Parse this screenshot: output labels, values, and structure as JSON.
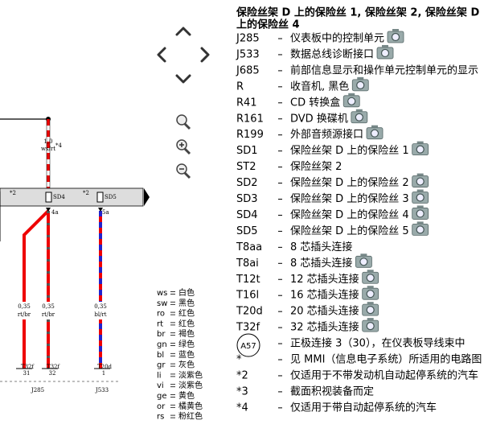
{
  "header": {
    "title": [
      "保险丝架 D 上的保险丝 1, 保险丝架 2, 保险丝架 D",
      "上的保险丝 4"
    ]
  },
  "components": [
    {
      "code": "J285",
      "desc": "仪表板中的控制单元",
      "photo": true
    },
    {
      "code": "J533",
      "desc": "数据总线诊断接口",
      "photo": true
    },
    {
      "code": "J685",
      "desc": "前部信息显示和操作单元控制单元的显示",
      "photo": false
    },
    {
      "code": "R",
      "desc": "收音机, 黑色",
      "photo": true
    },
    {
      "code": "R41",
      "desc": "CD 转换盒",
      "photo": true
    },
    {
      "code": "R161",
      "desc": "DVD 换碟机",
      "photo": true
    },
    {
      "code": "R199",
      "desc": "外部音频源接口",
      "photo": true
    },
    {
      "code": "SD1",
      "desc": "保险丝架 D 上的保险丝 1",
      "photo": true
    },
    {
      "code": "ST2",
      "desc": "保险丝架 2",
      "photo": false
    },
    {
      "code": "SD2",
      "desc": "保险丝架 D 上的保险丝 2",
      "photo": true
    },
    {
      "code": "SD3",
      "desc": "保险丝架 D 上的保险丝 3",
      "photo": true
    },
    {
      "code": "SD4",
      "desc": "保险丝架 D 上的保险丝 4",
      "photo": true
    },
    {
      "code": "SD5",
      "desc": "保险丝架 D 上的保险丝 5",
      "photo": true
    },
    {
      "code": "T8aa",
      "desc": "8 芯插头连接",
      "photo": false
    },
    {
      "code": "T8ai",
      "desc": "8 芯插头连接",
      "photo": true
    },
    {
      "code": "T12t",
      "desc": "12 芯插头连接",
      "photo": true
    },
    {
      "code": "T16l",
      "desc": "16 芯插头连接",
      "photo": true
    },
    {
      "code": "T20d",
      "desc": "20 芯插头连接",
      "photo": true
    },
    {
      "code": "T32f",
      "desc": "32 芯插头连接",
      "photo": true
    },
    {
      "code": "A57",
      "desc": "正极连接 3（30），在仪表板导线束中",
      "photo": false
    },
    {
      "code": "*",
      "desc": "见 MMI（信息电子系统）所适用的电路图",
      "photo": false
    },
    {
      "code": "*2",
      "desc": "仅适用于不带发动机自动起停系统的汽车",
      "photo": false
    },
    {
      "code": "*3",
      "desc": "截面积视装备而定",
      "photo": false
    },
    {
      "code": "*4",
      "desc": "仅适用于带自动起停系统的汽车",
      "photo": false
    }
  ],
  "color_legend": [
    {
      "code": "ws",
      "color": "白色"
    },
    {
      "code": "sw",
      "color": "黑色"
    },
    {
      "code": "ro",
      "color": "红色"
    },
    {
      "code": "rt",
      "color": "红色"
    },
    {
      "code": "br",
      "color": "褐色"
    },
    {
      "code": "gn",
      "color": "绿色"
    },
    {
      "code": "bl",
      "color": "蓝色"
    },
    {
      "code": "gr",
      "color": "灰色"
    },
    {
      "code": "li",
      "color": "淡紫色"
    },
    {
      "code": "vi",
      "color": "淡紫色"
    },
    {
      "code": "ge",
      "color": "黄色"
    },
    {
      "code": "or",
      "color": "橘黄色"
    },
    {
      "code": "rs",
      "color": "粉红色"
    }
  ],
  "diagram": {
    "wire_top": {
      "size": "1,0",
      "color": "ws/rt",
      "note": "*4"
    },
    "fuse_notes": [
      "*2",
      "*2"
    ],
    "fuses": [
      "SD4",
      "SD5"
    ],
    "pins": [
      "4a",
      "5a"
    ],
    "wires": [
      {
        "size": "0,35",
        "color": "rt/br"
      },
      {
        "size": "0,35",
        "color": "rt/br"
      },
      {
        "size": "0,35",
        "color": "bl/rt"
      }
    ],
    "connectors": [
      {
        "name": "T32f",
        "pin": "31"
      },
      {
        "name": "T32f",
        "pin": "32"
      },
      {
        "name": "T20d",
        "pin": "1"
      }
    ],
    "units": [
      "J285",
      "J533"
    ]
  }
}
